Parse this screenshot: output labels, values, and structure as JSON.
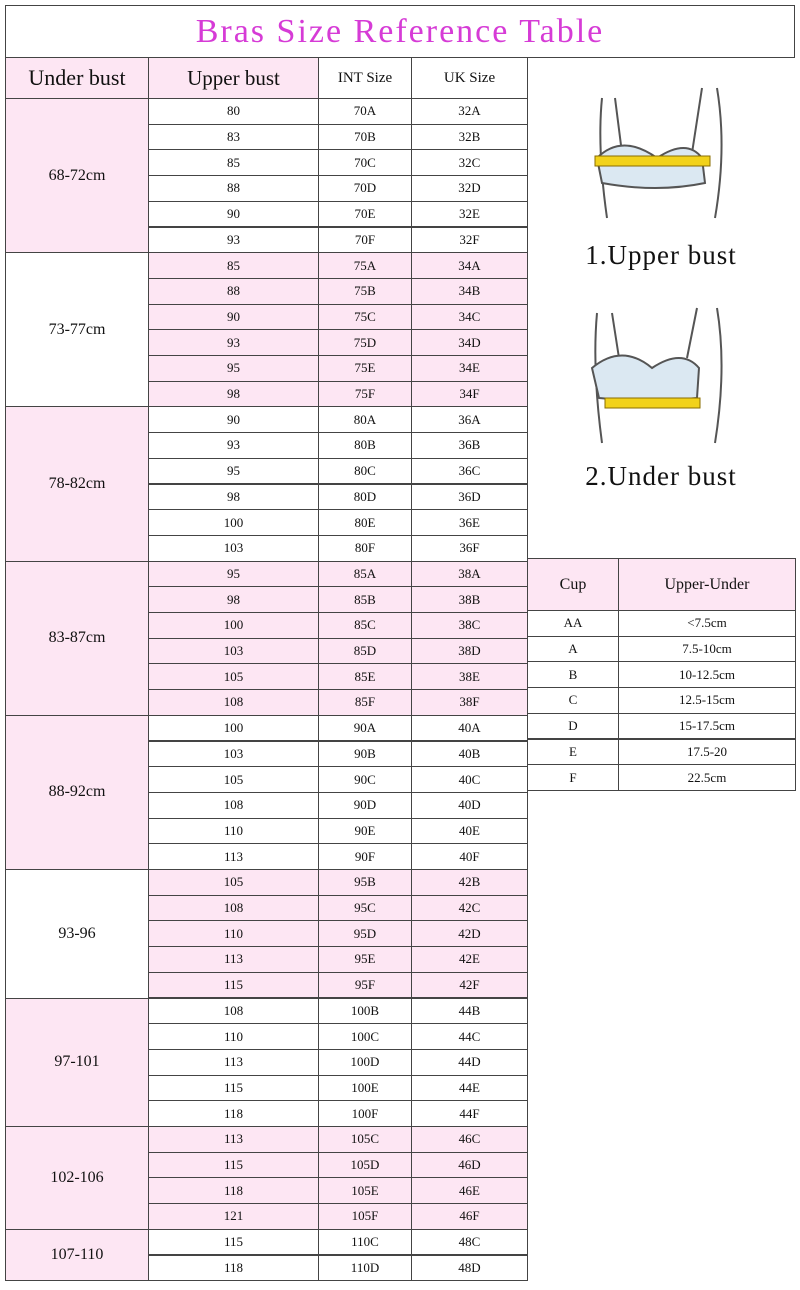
{
  "title": "Bras Size Reference Table",
  "table": {
    "headers": [
      "Under bust",
      "Upper bust",
      "INT Size",
      "UK Size"
    ],
    "groups": [
      {
        "under": "68-72cm",
        "rows": [
          [
            "80",
            "70A",
            "32A"
          ],
          [
            "83",
            "70B",
            "32B"
          ],
          [
            "85",
            "70C",
            "32C"
          ],
          [
            "88",
            "70D",
            "32D"
          ],
          [
            "90",
            "70E",
            "32E"
          ],
          [
            "93",
            "70F",
            "32F"
          ]
        ]
      },
      {
        "under": "73-77cm",
        "rows": [
          [
            "85",
            "75A",
            "34A"
          ],
          [
            "88",
            "75B",
            "34B"
          ],
          [
            "90",
            "75C",
            "34C"
          ],
          [
            "93",
            "75D",
            "34D"
          ],
          [
            "95",
            "75E",
            "34E"
          ],
          [
            "98",
            "75F",
            "34F"
          ]
        ]
      },
      {
        "under": "78-82cm",
        "rows": [
          [
            "90",
            "80A",
            "36A"
          ],
          [
            "93",
            "80B",
            "36B"
          ],
          [
            "95",
            "80C",
            "36C"
          ],
          [
            "98",
            "80D",
            "36D"
          ],
          [
            "100",
            "80E",
            "36E"
          ],
          [
            "103",
            "80F",
            "36F"
          ]
        ]
      },
      {
        "under": "83-87cm",
        "rows": [
          [
            "95",
            "85A",
            "38A"
          ],
          [
            "98",
            "85B",
            "38B"
          ],
          [
            "100",
            "85C",
            "38C"
          ],
          [
            "103",
            "85D",
            "38D"
          ],
          [
            "105",
            "85E",
            "38E"
          ],
          [
            "108",
            "85F",
            "38F"
          ]
        ]
      },
      {
        "under": "88-92cm",
        "rows": [
          [
            "100",
            "90A",
            "40A"
          ],
          [
            "103",
            "90B",
            "40B"
          ],
          [
            "105",
            "90C",
            "40C"
          ],
          [
            "108",
            "90D",
            "40D"
          ],
          [
            "110",
            "90E",
            "40E"
          ],
          [
            "113",
            "90F",
            "40F"
          ]
        ]
      },
      {
        "under": "93-96",
        "rows": [
          [
            "105",
            "95B",
            "42B"
          ],
          [
            "108",
            "95C",
            "42C"
          ],
          [
            "110",
            "95D",
            "42D"
          ],
          [
            "113",
            "95E",
            "42E"
          ],
          [
            "115",
            "95F",
            "42F"
          ]
        ]
      },
      {
        "under": "97-101",
        "rows": [
          [
            "108",
            "100B",
            "44B"
          ],
          [
            "110",
            "100C",
            "44C"
          ],
          [
            "113",
            "100D",
            "44D"
          ],
          [
            "115",
            "100E",
            "44E"
          ],
          [
            "118",
            "100F",
            "44F"
          ]
        ]
      },
      {
        "under": "102-106",
        "rows": [
          [
            "113",
            "105C",
            "46C"
          ],
          [
            "115",
            "105D",
            "46D"
          ],
          [
            "118",
            "105E",
            "46E"
          ],
          [
            "121",
            "105F",
            "46F"
          ]
        ]
      },
      {
        "under": "107-110",
        "rows": [
          [
            "115",
            "110C",
            "48C"
          ],
          [
            "118",
            "110D",
            "48D"
          ]
        ]
      }
    ]
  },
  "figure": {
    "labels": [
      "1.Upper bust",
      "2.Under bust"
    ]
  },
  "cup_table": {
    "headers": [
      "Cup",
      "Upper-Under"
    ],
    "rows": [
      [
        "AA",
        "<7.5cm"
      ],
      [
        "A",
        "7.5-10cm"
      ],
      [
        "B",
        "10-12.5cm"
      ],
      [
        "C",
        "12.5-15cm"
      ],
      [
        "D",
        "15-17.5cm"
      ],
      [
        "E",
        "17.5-20"
      ],
      [
        "F",
        "22.5cm"
      ]
    ]
  }
}
